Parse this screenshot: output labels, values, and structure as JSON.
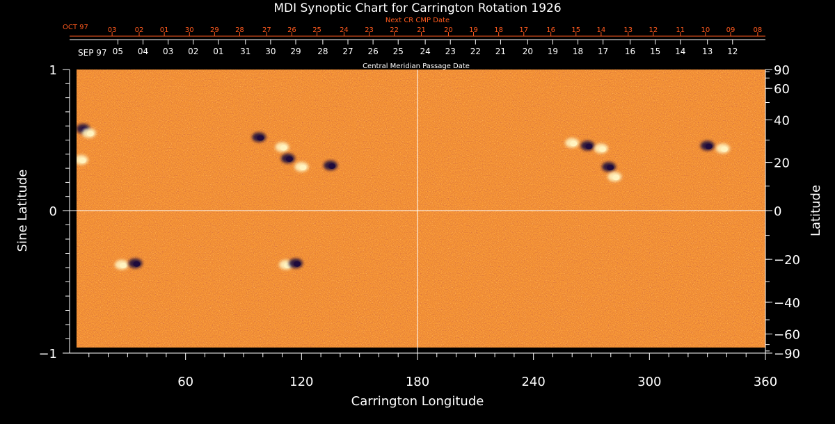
{
  "chart_data": {
    "type": "heatmap",
    "title": "MDI Synoptic Chart for Carrington Rotation 1926",
    "xlabel": "Carrington Longitude",
    "ylabel_left": "Sine Latitude",
    "ylabel_right": "Latitude",
    "top_label_next": "Next CR CMP Date",
    "top_label_cmp": "Central Meridian Passage Date",
    "xlim": [
      0,
      360
    ],
    "ylim": [
      -1,
      1
    ],
    "x_ticks": [
      60,
      120,
      180,
      240,
      300,
      360
    ],
    "y_ticks_left": [
      {
        "v": 1,
        "label": "1"
      },
      {
        "v": 0,
        "label": "0"
      },
      {
        "v": -1,
        "label": "−1"
      }
    ],
    "lat_ticks_right": [
      {
        "deg": 90,
        "label": "90"
      },
      {
        "deg": 60,
        "label": "60"
      },
      {
        "deg": 40,
        "label": "40"
      },
      {
        "deg": 20,
        "label": "20"
      },
      {
        "deg": 0,
        "label": "0"
      },
      {
        "deg": -20,
        "label": "−20"
      },
      {
        "deg": -40,
        "label": "−40"
      },
      {
        "deg": -60,
        "label": "−60"
      },
      {
        "deg": -90,
        "label": "−90"
      }
    ],
    "cmp_month_label": "SEP 97",
    "cmp_dates": [
      {
        "lon": 25,
        "label": "05"
      },
      {
        "lon": 38,
        "label": "04"
      },
      {
        "lon": 51,
        "label": "03"
      },
      {
        "lon": 64,
        "label": "02"
      },
      {
        "lon": 77,
        "label": "01"
      },
      {
        "lon": 91,
        "label": "31"
      },
      {
        "lon": 104,
        "label": "30"
      },
      {
        "lon": 117,
        "label": "29"
      },
      {
        "lon": 131,
        "label": "28"
      },
      {
        "lon": 144,
        "label": "27"
      },
      {
        "lon": 157,
        "label": "26"
      },
      {
        "lon": 170,
        "label": "25"
      },
      {
        "lon": 184,
        "label": "24"
      },
      {
        "lon": 197,
        "label": "23"
      },
      {
        "lon": 210,
        "label": "22"
      },
      {
        "lon": 223,
        "label": "21"
      },
      {
        "lon": 237,
        "label": "20"
      },
      {
        "lon": 250,
        "label": "19"
      },
      {
        "lon": 263,
        "label": "18"
      },
      {
        "lon": 276,
        "label": "17"
      },
      {
        "lon": 290,
        "label": "16"
      },
      {
        "lon": 303,
        "label": "15"
      },
      {
        "lon": 316,
        "label": "14"
      },
      {
        "lon": 330,
        "label": "13"
      },
      {
        "lon": 343,
        "label": "12"
      }
    ],
    "next_month_label": "OCT 97",
    "next_dates": [
      {
        "lon": 22,
        "label": "03"
      },
      {
        "lon": 36,
        "label": "02"
      },
      {
        "lon": 49,
        "label": "01"
      },
      {
        "lon": 62,
        "label": "30"
      },
      {
        "lon": 75,
        "label": "29"
      },
      {
        "lon": 88,
        "label": "28"
      },
      {
        "lon": 102,
        "label": "27"
      },
      {
        "lon": 115,
        "label": "26"
      },
      {
        "lon": 128,
        "label": "25"
      },
      {
        "lon": 142,
        "label": "24"
      },
      {
        "lon": 155,
        "label": "23"
      },
      {
        "lon": 168,
        "label": "22"
      },
      {
        "lon": 182,
        "label": "21"
      },
      {
        "lon": 196,
        "label": "20"
      },
      {
        "lon": 209,
        "label": "19"
      },
      {
        "lon": 222,
        "label": "18"
      },
      {
        "lon": 235,
        "label": "17"
      },
      {
        "lon": 249,
        "label": "16"
      },
      {
        "lon": 262,
        "label": "15"
      },
      {
        "lon": 275,
        "label": "14"
      },
      {
        "lon": 289,
        "label": "13"
      },
      {
        "lon": 302,
        "label": "12"
      },
      {
        "lon": 316,
        "label": "11"
      },
      {
        "lon": 329,
        "label": "10"
      },
      {
        "lon": 342,
        "label": "09"
      },
      {
        "lon": 356,
        "label": "08"
      }
    ],
    "active_regions": [
      {
        "lon": 7,
        "sinlat": 0.58,
        "polarity": "negative"
      },
      {
        "lon": 10,
        "sinlat": 0.55,
        "polarity": "positive"
      },
      {
        "lon": 6,
        "sinlat": 0.36,
        "polarity": "positive"
      },
      {
        "lon": 98,
        "sinlat": 0.52,
        "polarity": "negative"
      },
      {
        "lon": 110,
        "sinlat": 0.45,
        "polarity": "positive"
      },
      {
        "lon": 113,
        "sinlat": 0.37,
        "polarity": "negative"
      },
      {
        "lon": 120,
        "sinlat": 0.31,
        "polarity": "positive"
      },
      {
        "lon": 135,
        "sinlat": 0.32,
        "polarity": "negative"
      },
      {
        "lon": 260,
        "sinlat": 0.48,
        "polarity": "positive"
      },
      {
        "lon": 268,
        "sinlat": 0.46,
        "polarity": "negative"
      },
      {
        "lon": 275,
        "sinlat": 0.44,
        "polarity": "positive"
      },
      {
        "lon": 279,
        "sinlat": 0.31,
        "polarity": "negative"
      },
      {
        "lon": 282,
        "sinlat": 0.24,
        "polarity": "positive"
      },
      {
        "lon": 330,
        "sinlat": 0.46,
        "polarity": "negative"
      },
      {
        "lon": 338,
        "sinlat": 0.44,
        "polarity": "positive"
      },
      {
        "lon": 27,
        "sinlat": -0.38,
        "polarity": "positive"
      },
      {
        "lon": 34,
        "sinlat": -0.37,
        "polarity": "negative"
      },
      {
        "lon": 112,
        "sinlat": -0.38,
        "polarity": "positive"
      },
      {
        "lon": 117,
        "sinlat": -0.37,
        "polarity": "negative"
      }
    ],
    "grid": "crosshair at longitude 180 and sine latitude 0",
    "colors": {
      "background": "#000000",
      "map_base": "#ec5a14",
      "positive_field": "#fff3c0",
      "negative_field": "#1e0a3c",
      "next_cr_text": "#ff5a1e",
      "axis": "#ffffff"
    }
  }
}
